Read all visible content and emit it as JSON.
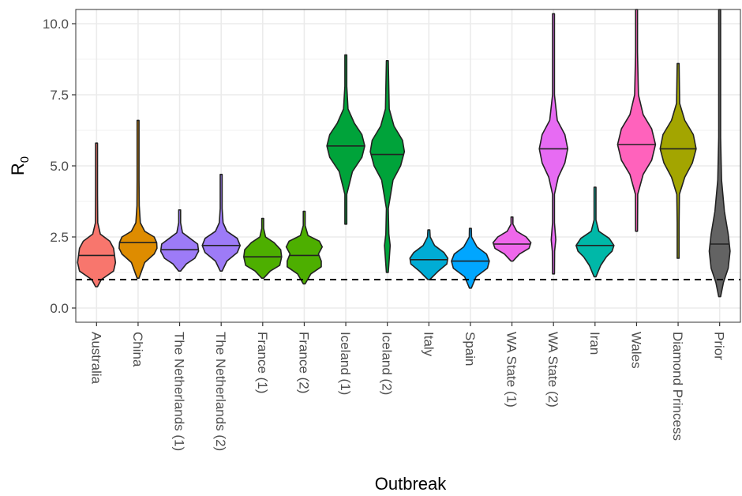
{
  "chart_data": {
    "type": "violin",
    "xlabel": "Outbreak",
    "ylabel": "R",
    "ylabel_subscript": "0",
    "ylim": [
      -0.5,
      10.5
    ],
    "yticks": [
      0.0,
      2.5,
      5.0,
      7.5,
      10.0
    ],
    "ytick_labels": [
      "0.0",
      "2.5",
      "5.0",
      "7.5",
      "10.0"
    ],
    "reference_line": {
      "y": 1.0,
      "style": "dashed",
      "color": "#000000"
    },
    "grid": true,
    "theme": "bw",
    "categories": [
      {
        "name": "Australia",
        "color": "#F8766D",
        "median": 1.85,
        "min": 0.75,
        "max": 5.8,
        "density": [
          [
            0.75,
            0.02
          ],
          [
            1.0,
            0.25
          ],
          [
            1.3,
            0.9
          ],
          [
            1.6,
            1.0
          ],
          [
            1.85,
            0.95
          ],
          [
            2.1,
            0.9
          ],
          [
            2.35,
            0.7
          ],
          [
            2.6,
            0.2
          ],
          [
            3.0,
            0.06
          ],
          [
            4.0,
            0.02
          ],
          [
            5.8,
            0.01
          ]
        ]
      },
      {
        "name": "China",
        "color": "#DE8C00",
        "median": 2.3,
        "min": 1.05,
        "max": 6.6,
        "density": [
          [
            1.05,
            0.02
          ],
          [
            1.6,
            0.35
          ],
          [
            1.9,
            0.85
          ],
          [
            2.1,
            1.0
          ],
          [
            2.3,
            0.98
          ],
          [
            2.5,
            0.85
          ],
          [
            2.7,
            0.35
          ],
          [
            3.0,
            0.12
          ],
          [
            3.6,
            0.06
          ],
          [
            4.5,
            0.04
          ],
          [
            6.6,
            0.01
          ]
        ]
      },
      {
        "name": "The Netherlands (1)",
        "color": "#B79F00",
        "fill": "#9D7BF7",
        "median": 2.05,
        "min": 1.3,
        "max": 3.45,
        "density": [
          [
            1.3,
            0.05
          ],
          [
            1.55,
            0.35
          ],
          [
            1.75,
            0.8
          ],
          [
            2.0,
            1.0
          ],
          [
            2.25,
            0.95
          ],
          [
            2.45,
            0.55
          ],
          [
            2.65,
            0.15
          ],
          [
            3.0,
            0.05
          ],
          [
            3.45,
            0.01
          ]
        ]
      },
      {
        "name": "The Netherlands (2)",
        "color": "#9D7BF7",
        "median": 2.2,
        "min": 1.3,
        "max": 4.7,
        "density": [
          [
            1.3,
            0.02
          ],
          [
            1.65,
            0.3
          ],
          [
            1.95,
            0.85
          ],
          [
            2.2,
            1.0
          ],
          [
            2.45,
            0.85
          ],
          [
            2.7,
            0.3
          ],
          [
            3.0,
            0.1
          ],
          [
            3.5,
            0.04
          ],
          [
            4.7,
            0.01
          ]
        ]
      },
      {
        "name": "France (1)",
        "color": "#4DAF00",
        "median": 1.8,
        "min": 1.05,
        "max": 3.15,
        "density": [
          [
            1.05,
            0.03
          ],
          [
            1.3,
            0.4
          ],
          [
            1.5,
            0.9
          ],
          [
            1.8,
            1.0
          ],
          [
            2.05,
            0.95
          ],
          [
            2.3,
            0.6
          ],
          [
            2.5,
            0.15
          ],
          [
            2.8,
            0.05
          ],
          [
            3.15,
            0.01
          ]
        ]
      },
      {
        "name": "France (2)",
        "color": "#4DAF00",
        "median": 1.85,
        "min": 0.85,
        "max": 3.4,
        "density": [
          [
            0.85,
            0.02
          ],
          [
            1.2,
            0.35
          ],
          [
            1.45,
            0.9
          ],
          [
            1.65,
            0.9
          ],
          [
            1.9,
            0.75
          ],
          [
            2.15,
            0.95
          ],
          [
            2.35,
            0.8
          ],
          [
            2.55,
            0.2
          ],
          [
            2.9,
            0.05
          ],
          [
            3.4,
            0.01
          ]
        ]
      },
      {
        "name": "Iceland (1)",
        "color": "#00A33A",
        "median": 5.7,
        "min": 2.95,
        "max": 8.9,
        "density": [
          [
            2.95,
            0.01
          ],
          [
            4.0,
            0.05
          ],
          [
            4.8,
            0.35
          ],
          [
            5.3,
            0.85
          ],
          [
            5.7,
            1.0
          ],
          [
            6.1,
            0.85
          ],
          [
            6.5,
            0.45
          ],
          [
            7.0,
            0.12
          ],
          [
            7.8,
            0.04
          ],
          [
            8.9,
            0.01
          ]
        ]
      },
      {
        "name": "Iceland (2)",
        "color": "#00A33A",
        "median": 5.4,
        "min": 1.25,
        "max": 8.7,
        "density": [
          [
            1.25,
            0.01
          ],
          [
            2.2,
            0.15
          ],
          [
            2.6,
            0.08
          ],
          [
            3.5,
            0.04
          ],
          [
            4.5,
            0.3
          ],
          [
            5.0,
            0.7
          ],
          [
            5.5,
            0.9
          ],
          [
            5.9,
            0.8
          ],
          [
            6.4,
            0.35
          ],
          [
            7.0,
            0.1
          ],
          [
            8.7,
            0.01
          ]
        ]
      },
      {
        "name": "Italy",
        "color": "#00ACD5",
        "median": 1.7,
        "min": 1.0,
        "max": 2.75,
        "density": [
          [
            1.0,
            0.03
          ],
          [
            1.3,
            0.5
          ],
          [
            1.55,
            0.95
          ],
          [
            1.75,
            1.0
          ],
          [
            1.95,
            0.8
          ],
          [
            2.2,
            0.3
          ],
          [
            2.5,
            0.07
          ],
          [
            2.75,
            0.01
          ]
        ]
      },
      {
        "name": "Spain",
        "color": "#00A6FF",
        "median": 1.65,
        "min": 0.7,
        "max": 2.8,
        "density": [
          [
            0.7,
            0.02
          ],
          [
            1.1,
            0.3
          ],
          [
            1.4,
            0.9
          ],
          [
            1.65,
            1.0
          ],
          [
            1.9,
            0.85
          ],
          [
            2.15,
            0.35
          ],
          [
            2.5,
            0.06
          ],
          [
            2.8,
            0.01
          ]
        ]
      },
      {
        "name": "WA State (1)",
        "color": "#EF67EB",
        "median": 2.25,
        "min": 1.65,
        "max": 3.2,
        "density": [
          [
            1.65,
            0.05
          ],
          [
            1.9,
            0.4
          ],
          [
            2.1,
            0.9
          ],
          [
            2.3,
            1.0
          ],
          [
            2.5,
            0.75
          ],
          [
            2.7,
            0.25
          ],
          [
            2.95,
            0.05
          ],
          [
            3.2,
            0.01
          ]
        ]
      },
      {
        "name": "WA State (2)",
        "color": "#E76BF3",
        "median": 5.6,
        "min": 1.2,
        "max": 10.35,
        "density": [
          [
            1.2,
            0.01
          ],
          [
            2.0,
            0.06
          ],
          [
            2.4,
            0.12
          ],
          [
            3.0,
            0.04
          ],
          [
            4.0,
            0.05
          ],
          [
            4.6,
            0.25
          ],
          [
            5.1,
            0.6
          ],
          [
            5.6,
            0.75
          ],
          [
            6.1,
            0.6
          ],
          [
            6.6,
            0.2
          ],
          [
            7.5,
            0.05
          ],
          [
            9.0,
            0.02
          ],
          [
            10.35,
            0.01
          ]
        ]
      },
      {
        "name": "Iran",
        "color": "#00B8A8",
        "median": 2.2,
        "min": 1.1,
        "max": 4.25,
        "density": [
          [
            1.1,
            0.02
          ],
          [
            1.5,
            0.3
          ],
          [
            1.8,
            0.6
          ],
          [
            2.0,
            0.9
          ],
          [
            2.2,
            1.0
          ],
          [
            2.45,
            0.75
          ],
          [
            2.7,
            0.2
          ],
          [
            3.1,
            0.05
          ],
          [
            4.25,
            0.01
          ]
        ]
      },
      {
        "name": "Wales",
        "color": "#FF62BC",
        "median": 5.75,
        "min": 2.7,
        "max": 10.5,
        "density": [
          [
            2.7,
            0.01
          ],
          [
            4.0,
            0.06
          ],
          [
            4.7,
            0.35
          ],
          [
            5.2,
            0.8
          ],
          [
            5.75,
            1.0
          ],
          [
            6.3,
            0.8
          ],
          [
            6.8,
            0.35
          ],
          [
            7.5,
            0.1
          ],
          [
            9.0,
            0.03
          ],
          [
            10.5,
            0.01
          ]
        ]
      },
      {
        "name": "Diamond Princess",
        "color": "#A3A500",
        "median": 5.6,
        "min": 1.75,
        "max": 8.6,
        "density": [
          [
            1.75,
            0.01
          ],
          [
            3.0,
            0.03
          ],
          [
            4.0,
            0.07
          ],
          [
            4.6,
            0.35
          ],
          [
            5.1,
            0.75
          ],
          [
            5.6,
            0.95
          ],
          [
            6.1,
            0.8
          ],
          [
            6.6,
            0.35
          ],
          [
            7.2,
            0.08
          ],
          [
            8.6,
            0.01
          ]
        ]
      },
      {
        "name": "Prior",
        "color": "#636363",
        "median": 2.25,
        "min": 0.4,
        "max": 10.5,
        "density": [
          [
            0.4,
            0.02
          ],
          [
            0.9,
            0.2
          ],
          [
            1.4,
            0.45
          ],
          [
            2.0,
            0.55
          ],
          [
            2.6,
            0.45
          ],
          [
            3.4,
            0.25
          ],
          [
            4.5,
            0.1
          ],
          [
            6.0,
            0.04
          ],
          [
            8.0,
            0.015
          ],
          [
            10.5,
            0.01
          ]
        ]
      }
    ]
  }
}
